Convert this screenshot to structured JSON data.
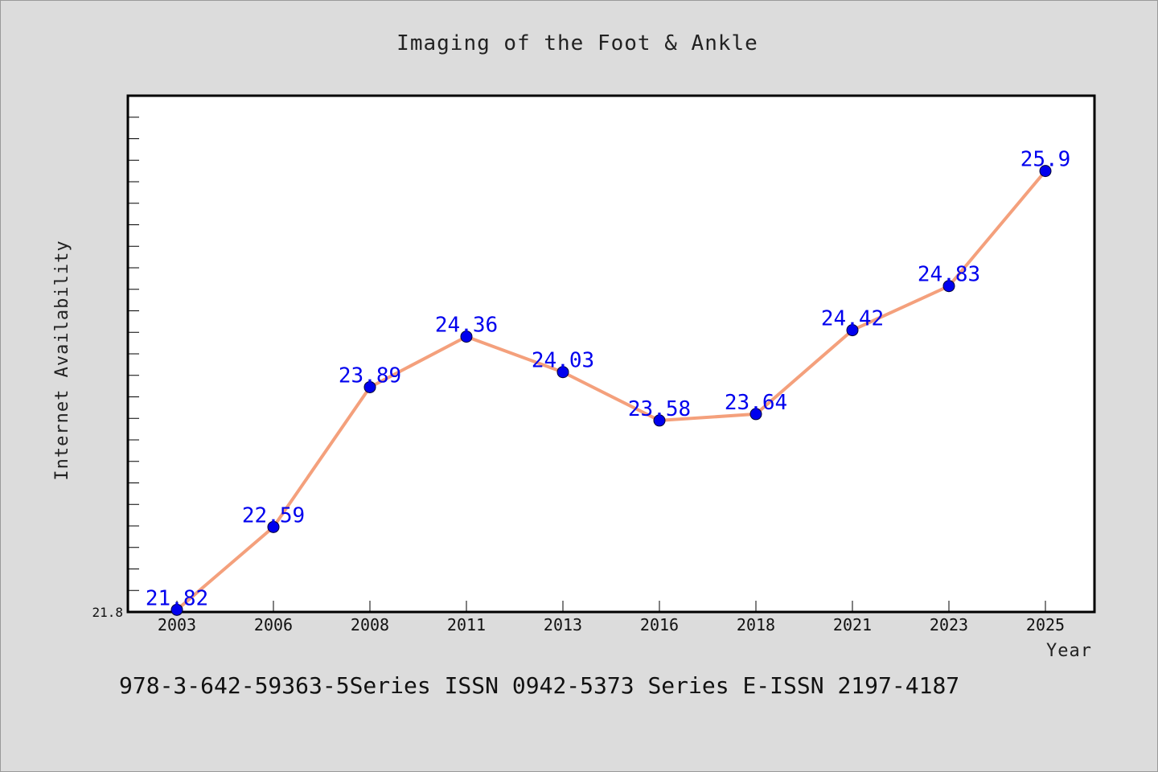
{
  "chart_data": {
    "type": "line",
    "title": "Imaging of the Foot & Ankle",
    "xlabel": "Year",
    "ylabel": "Internet Availability",
    "categories": [
      "2003",
      "2006",
      "2008",
      "2011",
      "2013",
      "2016",
      "2018",
      "2021",
      "2023",
      "2025"
    ],
    "values": [
      21.82,
      22.59,
      23.89,
      24.36,
      24.03,
      23.58,
      23.64,
      24.42,
      24.83,
      25.9
    ],
    "data_labels": [
      "21.82",
      "22.59",
      "23.89",
      "24.36",
      "24.03",
      "23.58",
      "23.64",
      "24.42",
      "24.83",
      "25.9"
    ],
    "ylim": [
      21.8,
      26.6
    ],
    "ytick_labels": [
      "21.8"
    ],
    "line_color": "#f4a07c",
    "marker_color": "#0000ee",
    "label_color": "#0000ee",
    "grid": false,
    "legend": "none"
  },
  "footer": {
    "text": "978-3-642-59363-5Series ISSN 0942-5373 Series E-ISSN 2197-4187"
  }
}
